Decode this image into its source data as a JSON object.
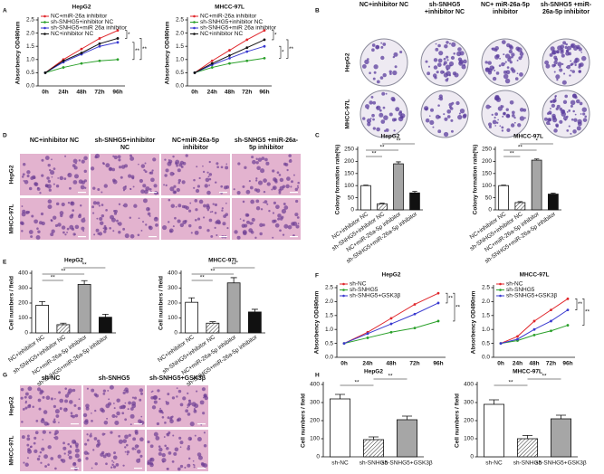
{
  "panel_labels": [
    "A",
    "B",
    "C",
    "D",
    "E",
    "F",
    "G",
    "H"
  ],
  "images": [
    {
      "cols": [
        "NC+inhibitor NC",
        "sh-SNHG5 +inhibitor NC",
        "NC+ miR-26a-5p inhibitor",
        "sh-SNHG5 +miR-26a-5p inhibitor"
      ],
      "rows": [
        "HepG2",
        "MHCC-97L"
      ]
    },
    {
      "cols": [
        "NC+inhibitor NC",
        "sh-SNHG5+inhibitor NC",
        "NC+miR-26a-5p inhibitor",
        "sh-SNHG5 +miR-26a-5p inhibitor"
      ],
      "rows": [
        "HepG2",
        "MHCC-97L"
      ]
    },
    {
      "cols": [
        "sh-NC",
        "sh-SNHG5",
        "sh-SNHG5+GSK3β"
      ],
      "rows": [
        "HepG2",
        "MHCC-97L"
      ]
    }
  ],
  "chart_data": [
    {
      "type": "line",
      "title": "HepG2",
      "ylabel": "Absorbency OD490nm",
      "categories": [
        "0h",
        "24h",
        "48h",
        "72h",
        "96h"
      ],
      "ylim": [
        0,
        2.5
      ],
      "yticks": [
        {
          "value": 0,
          "label": "0.0"
        },
        0.5,
        {
          "value": 1,
          "label": "1.0"
        },
        1.5,
        {
          "value": 2,
          "label": "2.0"
        },
        2.5
      ],
      "series": [
        {
          "name": "NC+miR-26a inhibitor",
          "color": "#e0262b",
          "values": [
            0.5,
            1.0,
            1.4,
            1.8,
            2.1
          ]
        },
        {
          "name": "sh-SNHG5+inhibitor NC",
          "color": "#2aa02a",
          "values": [
            0.5,
            0.7,
            0.85,
            0.95,
            1.0
          ]
        },
        {
          "name": "sh-SNHG5+miR 26a inhibitor",
          "color": "#3a3ad0",
          "values": [
            0.5,
            0.9,
            1.2,
            1.5,
            1.65
          ]
        },
        {
          "name": "NC+inhibitor NC",
          "color": "#111111",
          "values": [
            0.5,
            0.95,
            1.25,
            1.6,
            1.8
          ]
        }
      ],
      "annotations": [
        "*",
        "**",
        "**"
      ]
    },
    {
      "type": "line",
      "title": "MHCC-97L",
      "ylabel": "Absorbency OD490nm",
      "categories": [
        "0h",
        "24h",
        "48h",
        "72h",
        "96h"
      ],
      "ylim": [
        0,
        2.5
      ],
      "yticks": [
        {
          "value": 0,
          "label": "0.0"
        },
        0.5,
        {
          "value": 1,
          "label": "1.0"
        },
        1.5,
        {
          "value": 2,
          "label": "2.0"
        },
        2.5
      ],
      "series": [
        {
          "name": "NC+miR-26a inhibitor",
          "color": "#e0262b",
          "values": [
            0.5,
            0.95,
            1.35,
            1.75,
            2.1
          ]
        },
        {
          "name": "sh-SNHG5+inhibitor NC",
          "color": "#2aa02a",
          "values": [
            0.5,
            0.7,
            0.85,
            0.95,
            1.05
          ]
        },
        {
          "name": "sh-SNHG5+miR 26a inhibitor",
          "color": "#3a3ad0",
          "values": [
            0.5,
            0.8,
            1.05,
            1.3,
            1.5
          ]
        },
        {
          "name": "NC+inhibitor NC",
          "color": "#111111",
          "values": [
            0.5,
            0.85,
            1.15,
            1.45,
            1.75
          ]
        }
      ],
      "annotations": [
        "*",
        "*",
        "**"
      ]
    },
    {
      "type": "bar",
      "title": "HepG2",
      "ylabel": "Colony formation rate(%)",
      "categories": [
        "NC+inhibitor NC",
        "sh-SNHG5+inhibitor NC",
        "NC+miR-26a-5p inhibitor",
        "sh-SNHG5+miR-26a-5p inhibitor"
      ],
      "values": [
        100,
        25,
        190,
        70
      ],
      "errors": [
        2,
        3,
        8,
        6
      ],
      "colors": [
        "#ffffff",
        "#ffffff",
        "#a6a6a6",
        "#111111"
      ],
      "hatch": [
        false,
        true,
        false,
        false
      ],
      "ylim": [
        0,
        250
      ],
      "yticks": [
        0,
        50,
        100,
        150,
        200,
        250
      ],
      "annotations": [
        "**",
        "**",
        "**"
      ]
    },
    {
      "type": "bar",
      "title": "MHCC-97L",
      "ylabel": "Colony formation rate(%)",
      "categories": [
        "NC+inhibitor NC",
        "sh-SNHG5+inhibitor NC",
        "NC+miR-26a-5p inhibitor",
        "sh-SNHG5+miR-26a-5p inhibitor"
      ],
      "values": [
        100,
        30,
        205,
        65
      ],
      "errors": [
        2,
        4,
        5,
        4
      ],
      "colors": [
        "#ffffff",
        "#ffffff",
        "#a6a6a6",
        "#111111"
      ],
      "hatch": [
        false,
        true,
        false,
        false
      ],
      "ylim": [
        0,
        250
      ],
      "yticks": [
        0,
        50,
        100,
        150,
        200,
        250
      ],
      "annotations": [
        "*",
        "**",
        "**"
      ]
    },
    {
      "type": "bar",
      "title": "HepG2",
      "ylabel": "Cell numbers / field",
      "categories": [
        "NC+inhibitor NC",
        "sh-SNHG5+inhibitor NC",
        "NC+miR-26a-5p inhibitor",
        "sh-SNHG5+miR-26a-5p inhibitor"
      ],
      "values": [
        185,
        55,
        325,
        105
      ],
      "errors": [
        25,
        10,
        25,
        20
      ],
      "colors": [
        "#ffffff",
        "#ffffff",
        "#a6a6a6",
        "#111111"
      ],
      "hatch": [
        false,
        true,
        false,
        false
      ],
      "ylim": [
        0,
        400
      ],
      "yticks": [
        0,
        100,
        200,
        300,
        400
      ],
      "annotations": [
        "**",
        "**",
        "**"
      ]
    },
    {
      "type": "bar",
      "title": "MHCC-97L",
      "ylabel": "Cell numbers / field",
      "categories": [
        "NC+inhibitor NC",
        "sh-SNHG5+inhibitor NC",
        "NC+miR-26a-5p inhibitor",
        "sh-SNHG5+miR-26a-5p inhibitor"
      ],
      "values": [
        205,
        65,
        335,
        140
      ],
      "errors": [
        30,
        10,
        35,
        18
      ],
      "colors": [
        "#ffffff",
        "#ffffff",
        "#a6a6a6",
        "#111111"
      ],
      "hatch": [
        false,
        true,
        false,
        false
      ],
      "ylim": [
        0,
        400
      ],
      "yticks": [
        0,
        100,
        200,
        300,
        400
      ],
      "annotations": [
        "**",
        "**",
        "**"
      ]
    },
    {
      "type": "line",
      "title": "HepG2",
      "ylabel": "Absorbency OD490nm",
      "categories": [
        "0h",
        "24h",
        "48h",
        "72h",
        "96h"
      ],
      "ylim": [
        0,
        2.5
      ],
      "yticks": [
        {
          "value": 0,
          "label": "0.0"
        },
        0.5,
        {
          "value": 1,
          "label": "1.0"
        },
        1.5,
        {
          "value": 2,
          "label": "2.0"
        },
        2.5
      ],
      "series": [
        {
          "name": "sh-NC",
          "color": "#e0262b",
          "values": [
            0.5,
            0.9,
            1.4,
            1.9,
            2.3
          ]
        },
        {
          "name": "sh-SNHG5",
          "color": "#2aa02a",
          "values": [
            0.5,
            0.7,
            0.9,
            1.05,
            1.3
          ]
        },
        {
          "name": "sh-SNHG5+GSK3β",
          "color": "#3a3ad0",
          "values": [
            0.5,
            0.85,
            1.2,
            1.55,
            1.95
          ]
        }
      ],
      "annotations": [
        "**",
        "**"
      ]
    },
    {
      "type": "line",
      "title": "MHCC-97L",
      "ylabel": "Absorbency OD490nm",
      "categories": [
        "0h",
        "24h",
        "48h",
        "72h",
        "96h"
      ],
      "ylim": [
        0,
        2.5
      ],
      "yticks": [
        {
          "value": 0,
          "label": "0.0"
        },
        0.5,
        {
          "value": 1,
          "label": "1.0"
        },
        1.5,
        {
          "value": 2,
          "label": "2.0"
        },
        2.5
      ],
      "series": [
        {
          "name": "sh-NC",
          "color": "#e0262b",
          "values": [
            0.5,
            0.75,
            1.3,
            1.7,
            2.1
          ]
        },
        {
          "name": "sh-SNHG5",
          "color": "#2aa02a",
          "values": [
            0.5,
            0.6,
            0.8,
            0.95,
            1.15
          ]
        },
        {
          "name": "sh-SNHG5+GSK3β",
          "color": "#3a3ad0",
          "values": [
            0.5,
            0.65,
            1.0,
            1.3,
            1.7
          ]
        }
      ],
      "annotations": [
        "**",
        "**"
      ]
    },
    {
      "type": "bar",
      "title": "HepG2",
      "ylabel": "Cell numbers / field",
      "categories": [
        "sh-NC",
        "sh-SNHG5",
        "sh-SNHG5+GSK3β"
      ],
      "values": [
        320,
        95,
        205
      ],
      "errors": [
        25,
        15,
        20
      ],
      "colors": [
        "#ffffff",
        "#ffffff",
        "#a6a6a6"
      ],
      "hatch": [
        false,
        true,
        false
      ],
      "ylim": [
        0,
        400
      ],
      "yticks": [
        0,
        100,
        200,
        300,
        400
      ],
      "annotations": [
        "**",
        "**"
      ]
    },
    {
      "type": "bar",
      "title": "MHCC-97L",
      "ylabel": "Cell numbers / field",
      "categories": [
        "sh-NC",
        "sh-SNHG5",
        "sh-SNHG5+GSK3β"
      ],
      "values": [
        290,
        100,
        210
      ],
      "errors": [
        25,
        18,
        20
      ],
      "colors": [
        "#ffffff",
        "#ffffff",
        "#a6a6a6"
      ],
      "hatch": [
        false,
        true,
        false
      ],
      "ylim": [
        0,
        400
      ],
      "yticks": [
        0,
        100,
        200,
        300,
        400
      ],
      "annotations": [
        "**",
        "**"
      ]
    }
  ]
}
